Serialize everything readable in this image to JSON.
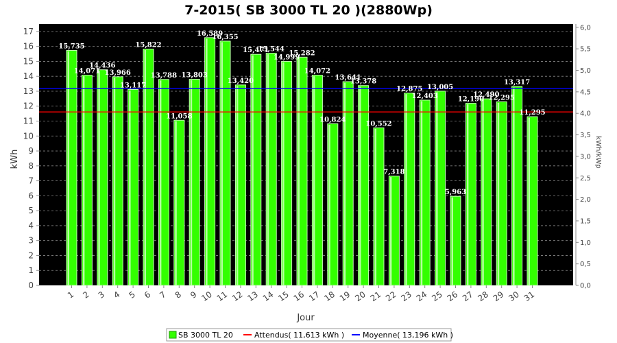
{
  "chart_data": {
    "type": "bar",
    "title": "7-2015( SB 3000 TL 20 )(2880Wp)",
    "xlabel": "Jour",
    "ylabel": "kWh",
    "y2label": "kWh/kWp",
    "categories": [
      "1",
      "2",
      "3",
      "4",
      "5",
      "6",
      "7",
      "8",
      "9",
      "10",
      "11",
      "12",
      "13",
      "14",
      "15",
      "16",
      "17",
      "18",
      "19",
      "20",
      "21",
      "22",
      "23",
      "24",
      "25",
      "26",
      "27",
      "28",
      "29",
      "30",
      "31"
    ],
    "series": [
      {
        "name": "SB 3000 TL 20",
        "values": [
          15.735,
          14.071,
          14.436,
          13.966,
          13.117,
          15.822,
          13.788,
          11.058,
          13.803,
          16.589,
          16.355,
          13.42,
          15.471,
          15.544,
          14.999,
          15.282,
          14.072,
          10.824,
          13.641,
          13.378,
          10.552,
          7.318,
          12.875,
          12.403,
          13.005,
          5.963,
          12.19,
          12.49,
          12.295,
          13.317,
          11.295
        ],
        "labels": [
          "15,735",
          "14,071",
          "14,436",
          "13,966",
          "13,117",
          "15,822",
          "13,788",
          "11,058",
          "13,803",
          "16,589",
          "16,355",
          "13,420",
          "15,471",
          "15,544",
          "14,999",
          "15,282",
          "14,072",
          "10,824",
          "13,641",
          "13,378",
          "10,552",
          "7,318",
          "12,875",
          "12,403",
          "13,005",
          "5,963",
          "12,190",
          "12,490",
          "12,295",
          "13,317",
          "11,295"
        ],
        "color": "#33ff00"
      }
    ],
    "reference_lines": [
      {
        "name": "Attendus",
        "value": 11.613,
        "color": "#ff0000",
        "legend": "Attendus( 11,613 kWh )"
      },
      {
        "name": "Moyenne",
        "value": 13.196,
        "color": "#0000ff",
        "legend": "Moyenne( 13,196 kWh )"
      }
    ],
    "ylim": [
      0,
      17.5
    ],
    "yticks": [
      0,
      1,
      2,
      3,
      4,
      5,
      6,
      7,
      8,
      9,
      10,
      11,
      12,
      13,
      14,
      15,
      16,
      17
    ],
    "y2lim": [
      0,
      6.077
    ],
    "y2ticks": [
      "0,0",
      "0,5",
      "1,0",
      "1,5",
      "2,0",
      "2,5",
      "3,0",
      "3,5",
      "4,0",
      "4,5",
      "5,0",
      "5,5",
      "6,0"
    ],
    "plot_background": "#000000",
    "grid": true,
    "legend_position": "bottom"
  }
}
